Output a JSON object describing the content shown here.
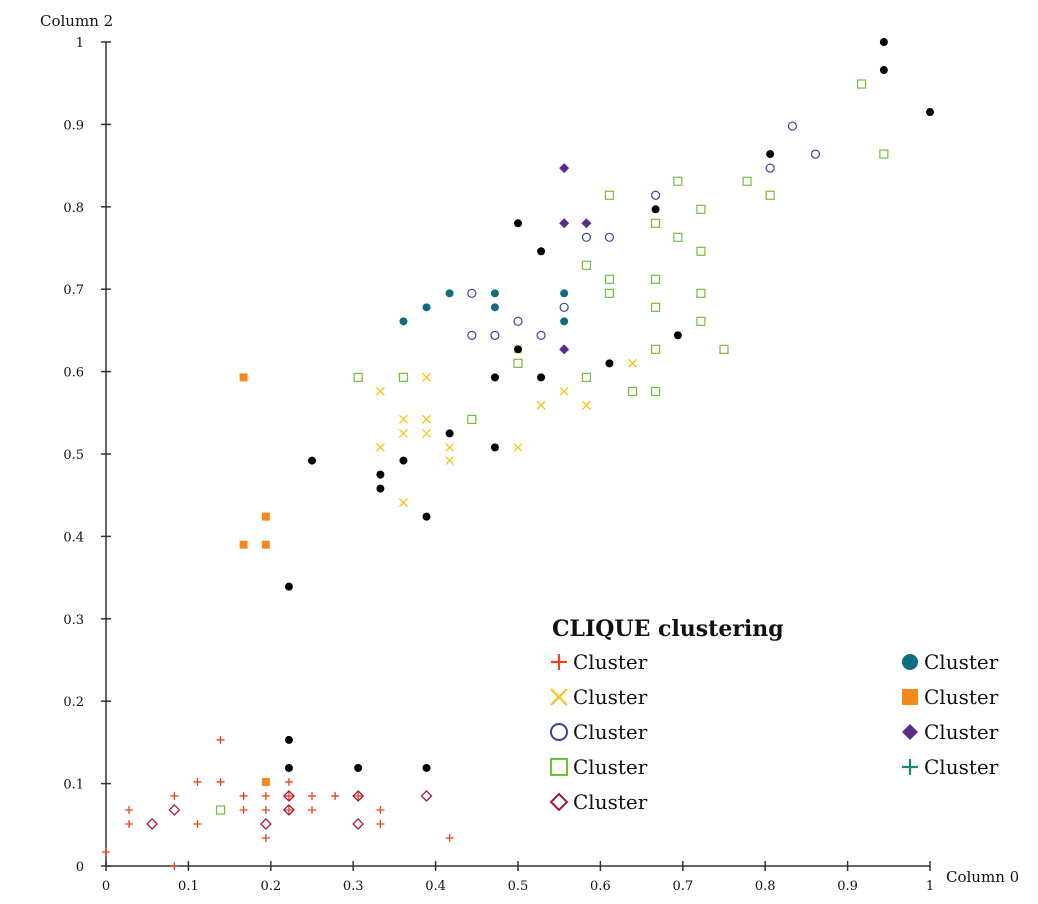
{
  "chart_data": {
    "type": "scatter",
    "title": "CLIQUE clustering",
    "xlabel": "Column 0",
    "ylabel": "Column 2",
    "xlim": [
      0,
      1
    ],
    "ylim": [
      0,
      1
    ],
    "xticks": [
      "0",
      "0.1",
      "0.2",
      "0.3",
      "0.4",
      "0.5",
      "0.6",
      "0.7",
      "0.8",
      "0.9",
      "1"
    ],
    "yticks": [
      "0",
      "0.1",
      "0.2",
      "0.3",
      "0.4",
      "0.5",
      "0.6",
      "0.7",
      "0.8",
      "0.9",
      "1"
    ],
    "grid": false,
    "legend_position": "bottom-right",
    "series": [
      {
        "name": "Cluster",
        "marker": "plus",
        "color": "#e8441c",
        "points": [
          [
            0.0,
            0.017
          ],
          [
            0.028,
            0.068
          ],
          [
            0.028,
            0.051
          ],
          [
            0.083,
            0.085
          ],
          [
            0.083,
            0.0
          ],
          [
            0.111,
            0.102
          ],
          [
            0.111,
            0.051
          ],
          [
            0.139,
            0.153
          ],
          [
            0.139,
            0.102
          ],
          [
            0.167,
            0.085
          ],
          [
            0.167,
            0.068
          ],
          [
            0.194,
            0.085
          ],
          [
            0.194,
            0.068
          ],
          [
            0.194,
            0.034
          ],
          [
            0.222,
            0.102
          ],
          [
            0.222,
            0.085
          ],
          [
            0.25,
            0.085
          ],
          [
            0.25,
            0.068
          ],
          [
            0.278,
            0.085
          ],
          [
            0.306,
            0.119
          ],
          [
            0.306,
            0.085
          ],
          [
            0.333,
            0.068
          ],
          [
            0.333,
            0.051
          ],
          [
            0.417,
            0.034
          ],
          [
            0.222,
            0.068
          ]
        ]
      },
      {
        "name": "Cluster",
        "marker": "x",
        "color": "#f5c518",
        "points": [
          [
            0.333,
            0.576
          ],
          [
            0.333,
            0.508
          ],
          [
            0.361,
            0.542
          ],
          [
            0.361,
            0.525
          ],
          [
            0.361,
            0.441
          ],
          [
            0.389,
            0.593
          ],
          [
            0.389,
            0.542
          ],
          [
            0.389,
            0.525
          ],
          [
            0.417,
            0.508
          ],
          [
            0.417,
            0.492
          ],
          [
            0.5,
            0.508
          ],
          [
            0.5,
            0.627
          ],
          [
            0.528,
            0.559
          ],
          [
            0.556,
            0.576
          ],
          [
            0.583,
            0.559
          ],
          [
            0.639,
            0.61
          ]
        ]
      },
      {
        "name": "Cluster",
        "marker": "circle-open",
        "color": "#3d3da8",
        "points": [
          [
            0.444,
            0.695
          ],
          [
            0.444,
            0.644
          ],
          [
            0.472,
            0.644
          ],
          [
            0.5,
            0.661
          ],
          [
            0.528,
            0.644
          ],
          [
            0.556,
            0.678
          ],
          [
            0.583,
            0.763
          ],
          [
            0.611,
            0.763
          ],
          [
            0.667,
            0.814
          ],
          [
            0.806,
            0.847
          ],
          [
            0.833,
            0.898
          ],
          [
            0.861,
            0.864
          ]
        ]
      },
      {
        "name": "Cluster",
        "marker": "square-open",
        "color": "#72bf3a",
        "points": [
          [
            0.306,
            0.593
          ],
          [
            0.361,
            0.593
          ],
          [
            0.444,
            0.542
          ],
          [
            0.5,
            0.61
          ],
          [
            0.583,
            0.729
          ],
          [
            0.583,
            0.593
          ],
          [
            0.611,
            0.814
          ],
          [
            0.611,
            0.712
          ],
          [
            0.611,
            0.695
          ],
          [
            0.639,
            0.576
          ],
          [
            0.667,
            0.78
          ],
          [
            0.667,
            0.712
          ],
          [
            0.667,
            0.678
          ],
          [
            0.667,
            0.627
          ],
          [
            0.667,
            0.576
          ],
          [
            0.694,
            0.831
          ],
          [
            0.694,
            0.763
          ],
          [
            0.722,
            0.797
          ],
          [
            0.722,
            0.746
          ],
          [
            0.722,
            0.695
          ],
          [
            0.722,
            0.661
          ],
          [
            0.75,
            0.627
          ],
          [
            0.778,
            0.831
          ],
          [
            0.806,
            0.814
          ],
          [
            0.917,
            0.949
          ],
          [
            0.944,
            0.864
          ],
          [
            0.139,
            0.068
          ]
        ]
      },
      {
        "name": "Cluster",
        "marker": "diamond-open",
        "color": "#a8173e",
        "points": [
          [
            0.056,
            0.051
          ],
          [
            0.083,
            0.068
          ],
          [
            0.194,
            0.051
          ],
          [
            0.222,
            0.085
          ],
          [
            0.222,
            0.068
          ],
          [
            0.306,
            0.085
          ],
          [
            0.306,
            0.051
          ],
          [
            0.389,
            0.085
          ]
        ]
      },
      {
        "name": "Cluster",
        "marker": "circle",
        "color": "#0e6e80",
        "points": [
          [
            0.361,
            0.661
          ],
          [
            0.389,
            0.678
          ],
          [
            0.417,
            0.695
          ],
          [
            0.472,
            0.695
          ],
          [
            0.472,
            0.678
          ],
          [
            0.556,
            0.695
          ],
          [
            0.556,
            0.661
          ]
        ]
      },
      {
        "name": "Cluster",
        "marker": "square",
        "color": "#f28a1e",
        "points": [
          [
            0.167,
            0.593
          ],
          [
            0.167,
            0.39
          ],
          [
            0.194,
            0.424
          ],
          [
            0.194,
            0.39
          ],
          [
            0.194,
            0.102
          ]
        ]
      },
      {
        "name": "Cluster",
        "marker": "diamond",
        "color": "#5a2d8c",
        "points": [
          [
            0.556,
            0.847
          ],
          [
            0.556,
            0.78
          ],
          [
            0.583,
            0.78
          ],
          [
            0.556,
            0.627
          ]
        ]
      },
      {
        "name": "Cluster",
        "marker": "plus",
        "color": "#17877a",
        "points": []
      }
    ],
    "noise": {
      "marker": "dot",
      "color": "#000000",
      "points": [
        [
          0.944,
          1.0
        ],
        [
          0.944,
          0.966
        ],
        [
          1.0,
          0.915
        ],
        [
          0.806,
          0.864
        ],
        [
          0.667,
          0.797
        ],
        [
          0.5,
          0.78
        ],
        [
          0.528,
          0.746
        ],
        [
          0.694,
          0.644
        ],
        [
          0.5,
          0.627
        ],
        [
          0.611,
          0.61
        ],
        [
          0.472,
          0.593
        ],
        [
          0.528,
          0.593
        ],
        [
          0.417,
          0.525
        ],
        [
          0.472,
          0.508
        ],
        [
          0.25,
          0.492
        ],
        [
          0.361,
          0.492
        ],
        [
          0.333,
          0.475
        ],
        [
          0.333,
          0.458
        ],
        [
          0.389,
          0.424
        ],
        [
          0.222,
          0.339
        ],
        [
          0.222,
          0.153
        ],
        [
          0.222,
          0.119
        ],
        [
          0.306,
          0.119
        ],
        [
          0.389,
          0.119
        ]
      ]
    }
  }
}
